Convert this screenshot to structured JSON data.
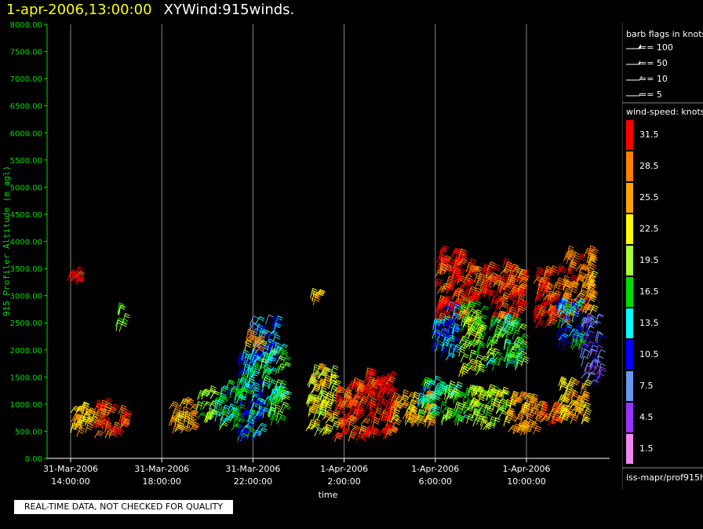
{
  "header": {
    "timestamp": "1-apr-2006,13:00:00",
    "title": "XYWind:915winds."
  },
  "notice": "REAL-TIME DATA, NOT CHECKED FOR QUALITY",
  "legend": {
    "barb_title": "barb flags in knots",
    "barb_items": [
      "== 100",
      "== 50",
      "== 10",
      "== 5"
    ],
    "speed_title": "wind-speed: knots",
    "speed_scale": [
      {
        "label": "31.5",
        "color": "#ff0000"
      },
      {
        "label": "28.5",
        "color": "#ff8000"
      },
      {
        "label": "25.5",
        "color": "#ffa500"
      },
      {
        "label": "22.5",
        "color": "#ffff00"
      },
      {
        "label": "19.5",
        "color": "#aaff33"
      },
      {
        "label": "16.5",
        "color": "#00dd00"
      },
      {
        "label": "13.5",
        "color": "#00ffff"
      },
      {
        "label": "10.5",
        "color": "#0000ff"
      },
      {
        "label": "7.5",
        "color": "#6699ee"
      },
      {
        "label": "4.5",
        "color": "#9933ff"
      },
      {
        "label": "1.5",
        "color": "#ee88ee"
      }
    ],
    "source": "iss-mapr/prof915h"
  },
  "chart_data": {
    "type": "scatter",
    "ylabel": "915 Profiler Altitude (m agl)",
    "xlabel": "time",
    "ylim": [
      0,
      8000
    ],
    "yticks": [
      "0.00",
      "500.00",
      "1000.00",
      "1500.00",
      "2000.00",
      "2500.00",
      "3000.00",
      "3500.00",
      "4000.00",
      "4500.00",
      "5000.00",
      "5500.00",
      "6000.00",
      "6500.00",
      "7000.00",
      "7500.00",
      "8000.00"
    ],
    "xlim_hours": [
      12.5,
      30.0
    ],
    "xticks": [
      {
        "hour": 14,
        "date": "31-Mar-2006",
        "time": "14:00:00"
      },
      {
        "hour": 18,
        "date": "31-Mar-2006",
        "time": "18:00:00"
      },
      {
        "hour": 22,
        "date": "31-Mar-2006",
        "time": "22:00:00"
      },
      {
        "hour": 26,
        "date": "1-Apr-2006",
        "time": "2:00:00"
      },
      {
        "hour": 30,
        "date": "1-Apr-2006",
        "time": "6:00:00"
      },
      {
        "hour": 34,
        "date": "1-Apr-2006",
        "time": "10:00:00"
      }
    ],
    "grid": "vertical at x ticks",
    "clusters": [
      {
        "t0": 13.8,
        "t1": 14.4,
        "a0": 3150,
        "a1": 3400,
        "speed": 31.5
      },
      {
        "t0": 15.9,
        "t1": 16.3,
        "a0": 2300,
        "a1": 2700,
        "speed": 17.5
      },
      {
        "t0": 13.9,
        "t1": 15.0,
        "a0": 400,
        "a1": 900,
        "speed": 24.5
      },
      {
        "t0": 14.9,
        "t1": 15.7,
        "a0": 350,
        "a1": 950,
        "speed": 29.5
      },
      {
        "t0": 15.7,
        "t1": 16.3,
        "a0": 350,
        "a1": 850,
        "speed": 29.5
      },
      {
        "t0": 18.3,
        "t1": 19.3,
        "a0": 450,
        "a1": 1000,
        "speed": 26.5
      },
      {
        "t0": 19.5,
        "t1": 20.3,
        "a0": 650,
        "a1": 1200,
        "speed": 19.0
      },
      {
        "t0": 20.3,
        "t1": 21.3,
        "a0": 500,
        "a1": 1300,
        "speed": 15.0
      },
      {
        "t0": 21.3,
        "t1": 22.3,
        "a0": 250,
        "a1": 1900,
        "speed": 13.0
      },
      {
        "t0": 21.8,
        "t1": 23.0,
        "a0": 1700,
        "a1": 2500,
        "speed": 10.5
      },
      {
        "t0": 22.3,
        "t1": 23.3,
        "a0": 600,
        "a1": 2000,
        "speed": 16.0
      },
      {
        "t0": 21.5,
        "t1": 22.3,
        "a0": 1950,
        "a1": 2200,
        "speed": 26.0
      },
      {
        "t0": 24.5,
        "t1": 24.8,
        "a0": 2800,
        "a1": 3000,
        "speed": 25.0
      },
      {
        "t0": 24.3,
        "t1": 25.5,
        "a0": 400,
        "a1": 1600,
        "speed": 22.0
      },
      {
        "t0": 25.5,
        "t1": 26.8,
        "a0": 300,
        "a1": 1300,
        "speed": 30.0
      },
      {
        "t0": 26.8,
        "t1": 28.0,
        "a0": 300,
        "a1": 1500,
        "speed": 31.0
      },
      {
        "t0": 28.0,
        "t1": 29.8,
        "a0": 500,
        "a1": 1100,
        "speed": 25.0
      },
      {
        "t0": 29.2,
        "t1": 30.3,
        "a0": 650,
        "a1": 1350,
        "speed": 15.0
      },
      {
        "t0": 30.2,
        "t1": 31.5,
        "a0": 600,
        "a1": 1250,
        "speed": 18.0
      },
      {
        "t0": 31.5,
        "t1": 33.0,
        "a0": 500,
        "a1": 1200,
        "speed": 20.0
      },
      {
        "t0": 33.0,
        "t1": 34.3,
        "a0": 400,
        "a1": 1100,
        "speed": 26.5
      },
      {
        "t0": 34.3,
        "t1": 35.3,
        "a0": 600,
        "a1": 1000,
        "speed": 28.0
      },
      {
        "t0": 35.3,
        "t1": 36.5,
        "a0": 600,
        "a1": 1350,
        "speed": 24.5
      },
      {
        "t0": 30.0,
        "t1": 31.2,
        "a0": 2500,
        "a1": 3800,
        "speed": 31.5
      },
      {
        "t0": 29.8,
        "t1": 30.8,
        "a0": 1800,
        "a1": 2700,
        "speed": 12.0
      },
      {
        "t0": 31.2,
        "t1": 32.4,
        "a0": 2800,
        "a1": 3500,
        "speed": 31.0
      },
      {
        "t0": 31.0,
        "t1": 32.0,
        "a0": 1500,
        "a1": 2800,
        "speed": 19.0
      },
      {
        "t0": 32.4,
        "t1": 33.8,
        "a0": 2500,
        "a1": 3500,
        "speed": 30.0
      },
      {
        "t0": 32.2,
        "t1": 33.8,
        "a0": 1600,
        "a1": 2500,
        "speed": 17.0
      },
      {
        "t0": 34.3,
        "t1": 35.6,
        "a0": 2400,
        "a1": 3400,
        "speed": 30.5
      },
      {
        "t0": 35.6,
        "t1": 36.8,
        "a0": 2600,
        "a1": 3750,
        "speed": 27.0
      },
      {
        "t0": 35.3,
        "t1": 36.4,
        "a0": 2000,
        "a1": 2800,
        "speed": 13.0
      },
      {
        "t0": 36.3,
        "t1": 37.2,
        "a0": 1300,
        "a1": 2500,
        "speed": 7.0
      }
    ]
  }
}
